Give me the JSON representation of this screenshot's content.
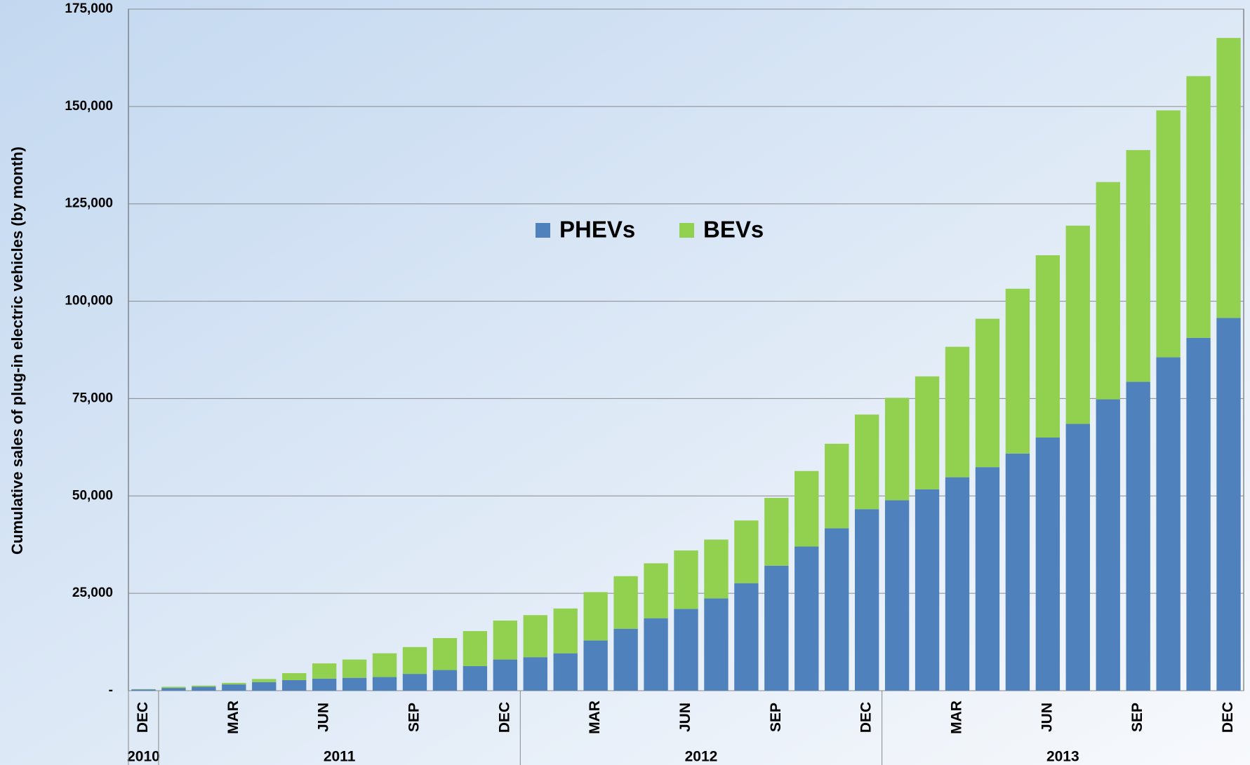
{
  "chart_data": {
    "type": "stacked_bar",
    "y_label": "Cumulative sales of plug-in electric vehicles (by month)",
    "categories": [
      "DEC",
      null,
      null,
      "MAR",
      null,
      null,
      "JUN",
      null,
      null,
      "SEP",
      null,
      null,
      "DEC",
      null,
      null,
      "MAR",
      null,
      null,
      "JUN",
      null,
      null,
      "SEP",
      null,
      null,
      "DEC",
      null,
      null,
      "MAR",
      null,
      null,
      "JUN",
      null,
      null,
      "SEP",
      null,
      null,
      "DEC"
    ],
    "years": [
      "2010",
      "2011",
      "2012",
      "2013"
    ],
    "series": [
      {
        "name": "PHEVs",
        "color": "#4f81bd",
        "values": [
          330,
          700,
          1000,
          1600,
          2200,
          2700,
          3100,
          3300,
          3500,
          4300,
          5300,
          6300,
          8000,
          8600,
          9600,
          12900,
          15900,
          18600,
          21000,
          23700,
          27600,
          32100,
          37000,
          41700,
          46600,
          48900,
          51700,
          54800,
          57400,
          60900,
          65000,
          68500,
          74800,
          79300,
          85600,
          90600,
          95700
        ]
      },
      {
        "name": "BEVs",
        "color": "#92d050",
        "values": [
          70,
          300,
          300,
          400,
          800,
          1800,
          3900,
          4700,
          6100,
          6900,
          8200,
          9000,
          10000,
          10800,
          11500,
          12400,
          13500,
          14100,
          15000,
          15100,
          16100,
          17400,
          19400,
          21700,
          24300,
          26300,
          29000,
          33500,
          38100,
          42300,
          46800,
          50900,
          55800,
          59500,
          63400,
          67200,
          71900
        ]
      }
    ],
    "ylim": [
      0,
      175000
    ],
    "yticks": [
      {
        "value": 0,
        "label": "-"
      },
      {
        "value": 25000,
        "label": "25,000"
      },
      {
        "value": 50000,
        "label": "50,000"
      },
      {
        "value": 75000,
        "label": "75,000"
      },
      {
        "value": 100000,
        "label": "100,000"
      },
      {
        "value": 125000,
        "label": "125,000"
      },
      {
        "value": 150000,
        "label": "150,000"
      },
      {
        "value": 175000,
        "label": "175,000"
      }
    ],
    "grid": true
  }
}
